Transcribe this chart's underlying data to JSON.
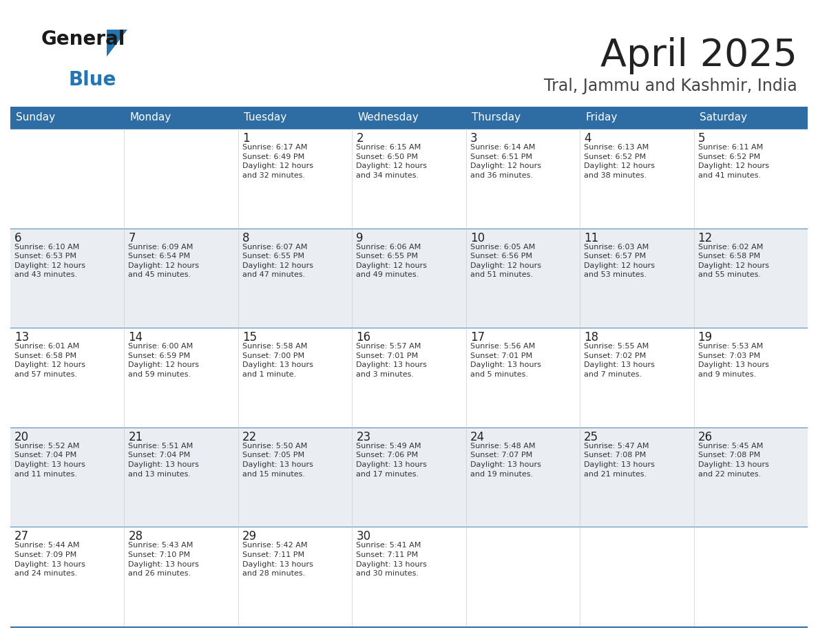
{
  "title": "April 2025",
  "subtitle": "Tral, Jammu and Kashmir, India",
  "header_color": "#2E6DA4",
  "header_text_color": "#FFFFFF",
  "odd_row_bg": "#EAEEF2",
  "even_row_bg": "#FFFFFF",
  "border_color": "#2E6DA4",
  "text_color": "#333333",
  "day_number_color": "#222222",
  "day_headers": [
    "Sunday",
    "Monday",
    "Tuesday",
    "Wednesday",
    "Thursday",
    "Friday",
    "Saturday"
  ],
  "weeks": [
    [
      {
        "day": "",
        "text": ""
      },
      {
        "day": "",
        "text": ""
      },
      {
        "day": "1",
        "text": "Sunrise: 6:17 AM\nSunset: 6:49 PM\nDaylight: 12 hours\nand 32 minutes."
      },
      {
        "day": "2",
        "text": "Sunrise: 6:15 AM\nSunset: 6:50 PM\nDaylight: 12 hours\nand 34 minutes."
      },
      {
        "day": "3",
        "text": "Sunrise: 6:14 AM\nSunset: 6:51 PM\nDaylight: 12 hours\nand 36 minutes."
      },
      {
        "day": "4",
        "text": "Sunrise: 6:13 AM\nSunset: 6:52 PM\nDaylight: 12 hours\nand 38 minutes."
      },
      {
        "day": "5",
        "text": "Sunrise: 6:11 AM\nSunset: 6:52 PM\nDaylight: 12 hours\nand 41 minutes."
      }
    ],
    [
      {
        "day": "6",
        "text": "Sunrise: 6:10 AM\nSunset: 6:53 PM\nDaylight: 12 hours\nand 43 minutes."
      },
      {
        "day": "7",
        "text": "Sunrise: 6:09 AM\nSunset: 6:54 PM\nDaylight: 12 hours\nand 45 minutes."
      },
      {
        "day": "8",
        "text": "Sunrise: 6:07 AM\nSunset: 6:55 PM\nDaylight: 12 hours\nand 47 minutes."
      },
      {
        "day": "9",
        "text": "Sunrise: 6:06 AM\nSunset: 6:55 PM\nDaylight: 12 hours\nand 49 minutes."
      },
      {
        "day": "10",
        "text": "Sunrise: 6:05 AM\nSunset: 6:56 PM\nDaylight: 12 hours\nand 51 minutes."
      },
      {
        "day": "11",
        "text": "Sunrise: 6:03 AM\nSunset: 6:57 PM\nDaylight: 12 hours\nand 53 minutes."
      },
      {
        "day": "12",
        "text": "Sunrise: 6:02 AM\nSunset: 6:58 PM\nDaylight: 12 hours\nand 55 minutes."
      }
    ],
    [
      {
        "day": "13",
        "text": "Sunrise: 6:01 AM\nSunset: 6:58 PM\nDaylight: 12 hours\nand 57 minutes."
      },
      {
        "day": "14",
        "text": "Sunrise: 6:00 AM\nSunset: 6:59 PM\nDaylight: 12 hours\nand 59 minutes."
      },
      {
        "day": "15",
        "text": "Sunrise: 5:58 AM\nSunset: 7:00 PM\nDaylight: 13 hours\nand 1 minute."
      },
      {
        "day": "16",
        "text": "Sunrise: 5:57 AM\nSunset: 7:01 PM\nDaylight: 13 hours\nand 3 minutes."
      },
      {
        "day": "17",
        "text": "Sunrise: 5:56 AM\nSunset: 7:01 PM\nDaylight: 13 hours\nand 5 minutes."
      },
      {
        "day": "18",
        "text": "Sunrise: 5:55 AM\nSunset: 7:02 PM\nDaylight: 13 hours\nand 7 minutes."
      },
      {
        "day": "19",
        "text": "Sunrise: 5:53 AM\nSunset: 7:03 PM\nDaylight: 13 hours\nand 9 minutes."
      }
    ],
    [
      {
        "day": "20",
        "text": "Sunrise: 5:52 AM\nSunset: 7:04 PM\nDaylight: 13 hours\nand 11 minutes."
      },
      {
        "day": "21",
        "text": "Sunrise: 5:51 AM\nSunset: 7:04 PM\nDaylight: 13 hours\nand 13 minutes."
      },
      {
        "day": "22",
        "text": "Sunrise: 5:50 AM\nSunset: 7:05 PM\nDaylight: 13 hours\nand 15 minutes."
      },
      {
        "day": "23",
        "text": "Sunrise: 5:49 AM\nSunset: 7:06 PM\nDaylight: 13 hours\nand 17 minutes."
      },
      {
        "day": "24",
        "text": "Sunrise: 5:48 AM\nSunset: 7:07 PM\nDaylight: 13 hours\nand 19 minutes."
      },
      {
        "day": "25",
        "text": "Sunrise: 5:47 AM\nSunset: 7:08 PM\nDaylight: 13 hours\nand 21 minutes."
      },
      {
        "day": "26",
        "text": "Sunrise: 5:45 AM\nSunset: 7:08 PM\nDaylight: 13 hours\nand 22 minutes."
      }
    ],
    [
      {
        "day": "27",
        "text": "Sunrise: 5:44 AM\nSunset: 7:09 PM\nDaylight: 13 hours\nand 24 minutes."
      },
      {
        "day": "28",
        "text": "Sunrise: 5:43 AM\nSunset: 7:10 PM\nDaylight: 13 hours\nand 26 minutes."
      },
      {
        "day": "29",
        "text": "Sunrise: 5:42 AM\nSunset: 7:11 PM\nDaylight: 13 hours\nand 28 minutes."
      },
      {
        "day": "30",
        "text": "Sunrise: 5:41 AM\nSunset: 7:11 PM\nDaylight: 13 hours\nand 30 minutes."
      },
      {
        "day": "",
        "text": ""
      },
      {
        "day": "",
        "text": ""
      },
      {
        "day": "",
        "text": ""
      }
    ]
  ],
  "logo_color_general": "#1a1a1a",
  "logo_color_blue": "#2375B3",
  "logo_triangle_color": "#2375B3",
  "title_color": "#222222",
  "subtitle_color": "#444444"
}
